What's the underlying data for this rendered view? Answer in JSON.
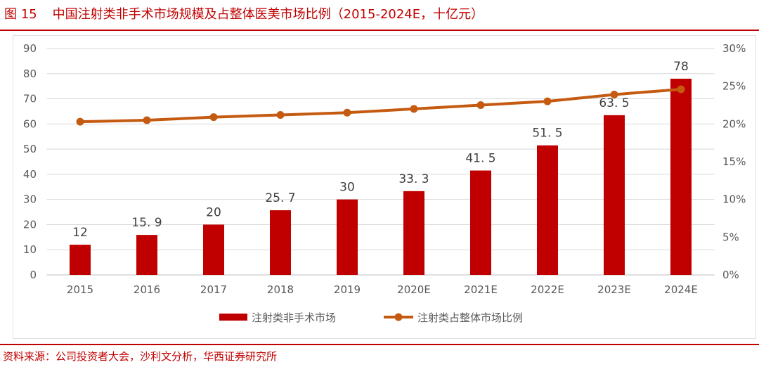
{
  "figure_label": "图 15",
  "title": "中国注射类非手术市场规模及占整体医美市场比例（2015-2024E，十亿元）",
  "source": "资料来源：公司投资者大会，沙利文分析，华西证券研究所",
  "chart_data": {
    "type": "bar+line",
    "categories": [
      "2015",
      "2016",
      "2017",
      "2018",
      "2019",
      "2020E",
      "2021E",
      "2022E",
      "2023E",
      "2024E"
    ],
    "series": [
      {
        "name": "注射类非手术市场",
        "type": "bar",
        "axis": "left",
        "color": "#c00000",
        "values": [
          12,
          15.9,
          20,
          25.7,
          30,
          33.3,
          41.5,
          51.5,
          63.5,
          78
        ],
        "labels": [
          "12",
          "15. 9",
          "20",
          "25. 7",
          "30",
          "33. 3",
          "41. 5",
          "51. 5",
          "63. 5",
          "78"
        ]
      },
      {
        "name": "注射类占整体市场比例",
        "type": "line",
        "axis": "right",
        "color": "#c55a11",
        "values": [
          20.3,
          20.5,
          20.9,
          21.2,
          21.5,
          22.0,
          22.5,
          23.0,
          23.9,
          24.6
        ]
      }
    ],
    "ylim_left": [
      0,
      90
    ],
    "yticks_left": [
      0,
      10,
      20,
      30,
      40,
      50,
      60,
      70,
      80,
      90
    ],
    "ylim_right": [
      0,
      30
    ],
    "yticks_right": [
      "0%",
      "5%",
      "10%",
      "15%",
      "20%",
      "25%",
      "30%"
    ],
    "grid": true,
    "legend": "bottom"
  }
}
